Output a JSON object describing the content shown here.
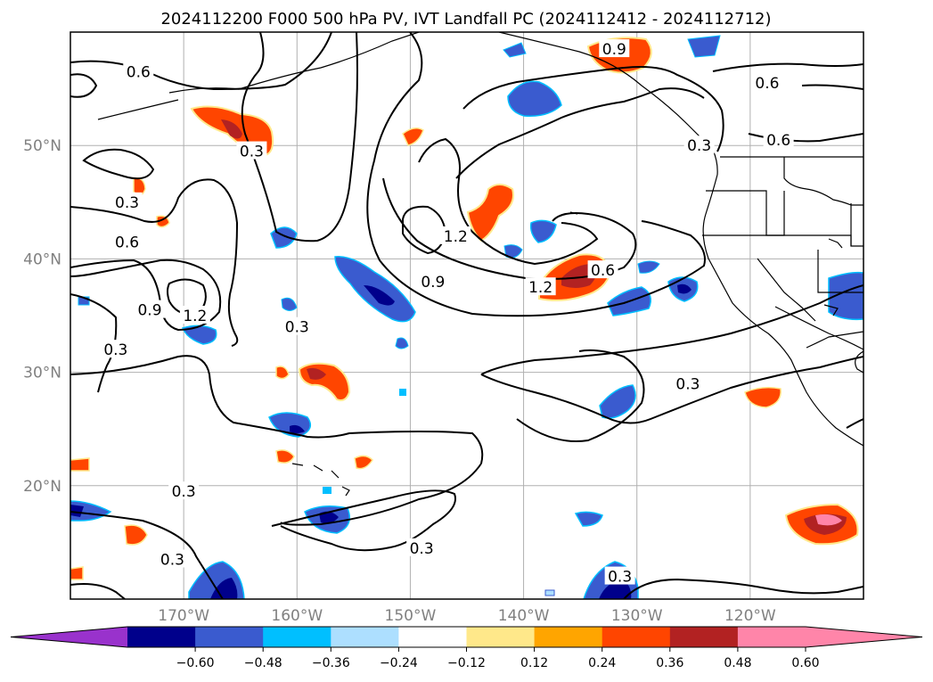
{
  "title": "2024112200 F000 500 hPa PV, IVT Landfall PC (2024112412 - 2024112712)",
  "map": {
    "lat_ticks": [
      {
        "value": 50,
        "label": "50°N"
      },
      {
        "value": 40,
        "label": "40°N"
      },
      {
        "value": 30,
        "label": "30°N"
      },
      {
        "value": 20,
        "label": "20°N"
      }
    ],
    "lon_ticks": [
      {
        "value": -170,
        "label": "170°W"
      },
      {
        "value": -160,
        "label": "160°W"
      },
      {
        "value": -150,
        "label": "150°W"
      },
      {
        "value": -140,
        "label": "140°W"
      },
      {
        "value": -130,
        "label": "130°W"
      },
      {
        "value": -120,
        "label": "120°W"
      }
    ],
    "extent": {
      "lon": [
        -180,
        -110
      ],
      "lat": [
        10,
        60
      ]
    },
    "grid": true
  },
  "contours": {
    "levels": [
      0.3,
      0.6,
      0.9,
      1.2
    ],
    "labels": [
      {
        "text": "0.6",
        "lon": -174,
        "lat": 56.5
      },
      {
        "text": "0.3",
        "lon": -164,
        "lat": 49.5
      },
      {
        "text": "0.3",
        "lon": -175,
        "lat": 45
      },
      {
        "text": "0.6",
        "lon": -175,
        "lat": 41.5
      },
      {
        "text": "0.9",
        "lon": -173,
        "lat": 35.5
      },
      {
        "text": "1.2",
        "lon": -169,
        "lat": 35
      },
      {
        "text": "0.3",
        "lon": -176,
        "lat": 32
      },
      {
        "text": "0.3",
        "lon": -160,
        "lat": 34
      },
      {
        "text": "1.2",
        "lon": -146,
        "lat": 42
      },
      {
        "text": "0.9",
        "lon": -148,
        "lat": 38
      },
      {
        "text": "1.2",
        "lon": -138.5,
        "lat": 37.5
      },
      {
        "text": "0.6",
        "lon": -133,
        "lat": 39
      },
      {
        "text": "0.9",
        "lon": -132,
        "lat": 58.5
      },
      {
        "text": "0.6",
        "lon": -118.5,
        "lat": 55.5
      },
      {
        "text": "0.6",
        "lon": -117.5,
        "lat": 50.5
      },
      {
        "text": "0.3",
        "lon": -124.5,
        "lat": 50
      },
      {
        "text": "0.3",
        "lon": -125.5,
        "lat": 29
      },
      {
        "text": "0.3",
        "lon": -170,
        "lat": 19.5
      },
      {
        "text": "0.3",
        "lon": -171,
        "lat": 13.5
      },
      {
        "text": "0.3",
        "lon": -149,
        "lat": 14.5
      },
      {
        "text": "0.3",
        "lon": -131.5,
        "lat": 12
      }
    ]
  },
  "colorbar": {
    "ticks": [
      "−0.60",
      "−0.48",
      "−0.36",
      "−0.24",
      "−0.12",
      "0.12",
      "0.24",
      "0.36",
      "0.48",
      "0.60"
    ],
    "colors": {
      "under": "#9932CC",
      "bins": [
        "#00008B",
        "#3A5BCF",
        "#00BFFF",
        "#ADDFFF",
        "#FFFFFF",
        "#FFE88A",
        "#FFA500",
        "#FF4500",
        "#B22222",
        "#FF85A9"
      ],
      "over": "#FF85A9"
    }
  }
}
